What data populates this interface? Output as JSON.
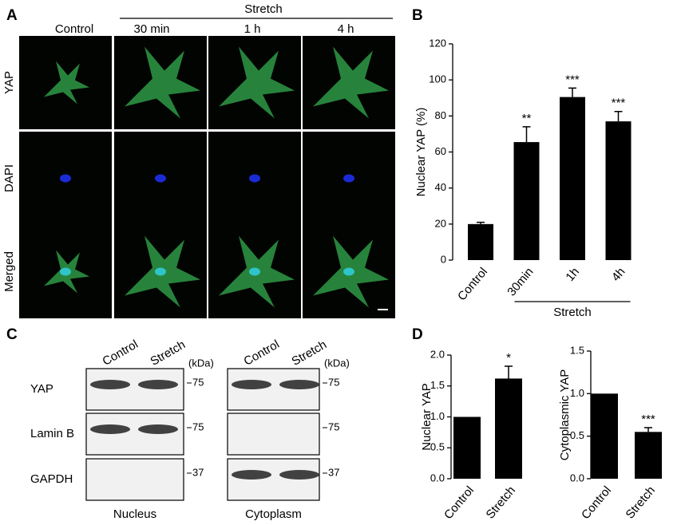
{
  "panel_labels": [
    "A",
    "B",
    "C",
    "D"
  ],
  "panel_a": {
    "columns": [
      "Control",
      "30 min",
      "1 h",
      "4 h"
    ],
    "group_label": "Stretch",
    "rows": [
      "YAP",
      "DAPI",
      "Merged"
    ]
  },
  "chart_data": [
    {
      "type": "bar",
      "categories": [
        "Control",
        "30min",
        "1h",
        "4h"
      ],
      "values": [
        20,
        65.5,
        90.5,
        77
      ],
      "errors": [
        1,
        8.5,
        5,
        5.5
      ],
      "annotations": [
        null,
        "**",
        "***",
        "***"
      ],
      "y_label": "Nuclear YAP (%)",
      "ylim": [
        0,
        120
      ],
      "yticks": [
        0,
        20,
        40,
        60,
        80,
        100,
        120
      ],
      "group_label": "Stretch",
      "color": "#000000"
    },
    {
      "type": "bar",
      "categories": [
        "Control",
        "Stretch"
      ],
      "values": [
        1,
        1.62
      ],
      "errors": [
        0,
        0.2
      ],
      "annotations": [
        null,
        "*"
      ],
      "y_label": "Nuclear YAP",
      "ylim": [
        0,
        2
      ],
      "yticks": [
        {
          "value": 0,
          "label": "0.0"
        },
        0.5,
        {
          "value": 1,
          "label": "1.0"
        },
        1.5,
        {
          "value": 2,
          "label": "2.0"
        }
      ],
      "color": "#000000"
    },
    {
      "type": "bar",
      "categories": [
        "Control",
        "Stretch"
      ],
      "values": [
        1,
        0.55
      ],
      "errors": [
        0,
        0.05
      ],
      "annotations": [
        null,
        "***"
      ],
      "y_label": "Cytoplasmic YAP",
      "ylim": [
        0,
        1.5
      ],
      "yticks": [
        {
          "value": 0,
          "label": "0.0"
        },
        0.5,
        {
          "value": 1,
          "label": "1.0"
        },
        1.5
      ],
      "color": "#000000"
    }
  ],
  "panel_c": {
    "rows": [
      "YAP",
      "Lamin B",
      "GAPDH"
    ],
    "groups": [
      {
        "columns": [
          "Control",
          "Stretch"
        ],
        "unit": "(kDa)",
        "markers": [
          "75",
          "75",
          "37"
        ],
        "caption": "Nucleus"
      },
      {
        "columns": [
          "Control",
          "Stretch"
        ],
        "unit": "(kDa)",
        "markers": [
          "75",
          "75",
          "37"
        ],
        "caption": "Cytoplasm"
      }
    ]
  }
}
